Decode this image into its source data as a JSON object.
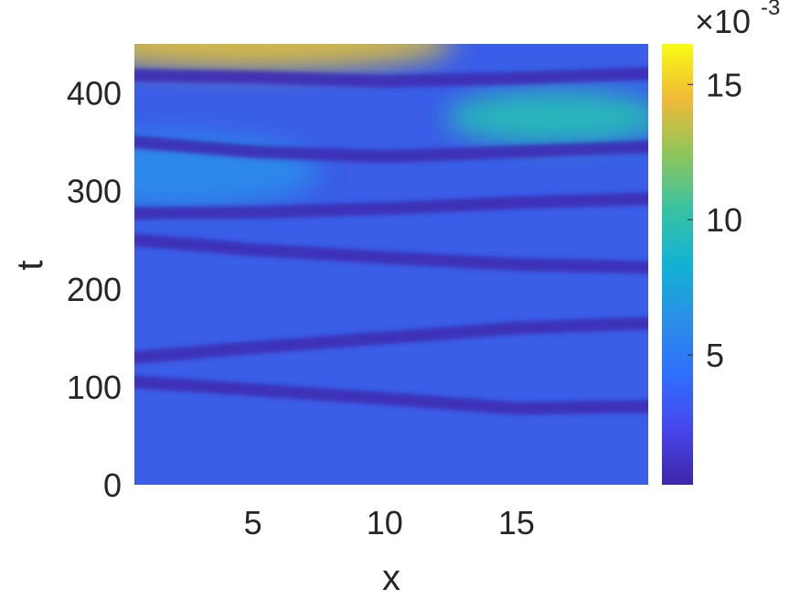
{
  "chart_data": {
    "type": "heatmap",
    "title": "",
    "xlabel": "x",
    "ylabel": "t",
    "xlim": [
      0.5,
      20
    ],
    "ylim": [
      0,
      450
    ],
    "x_ticks": [
      5,
      10,
      15
    ],
    "y_ticks": [
      0,
      100,
      200,
      300,
      400
    ],
    "colorbar": {
      "range": [
        0.2,
        16.5
      ],
      "ticks": [
        5,
        10,
        15
      ],
      "exponent_label": "×10",
      "exponent_power": "-3",
      "colormap": "parula"
    },
    "dark_valley_curves": [
      {
        "x": [
          0.5,
          5,
          10,
          15,
          20
        ],
        "t": [
          105,
          97,
          88,
          78,
          80
        ]
      },
      {
        "x": [
          0.5,
          5,
          10,
          15,
          20
        ],
        "t": [
          130,
          140,
          150,
          160,
          165
        ]
      },
      {
        "x": [
          0.5,
          5,
          10,
          15,
          20
        ],
        "t": [
          250,
          240,
          232,
          225,
          222
        ]
      },
      {
        "x": [
          0.5,
          5,
          10,
          15,
          20
        ],
        "t": [
          277,
          278,
          282,
          288,
          292
        ]
      },
      {
        "x": [
          0.5,
          5,
          10,
          15,
          20
        ],
        "t": [
          350,
          340,
          335,
          340,
          345
        ]
      },
      {
        "x": [
          0.5,
          5,
          10,
          15,
          20
        ],
        "t": [
          418,
          416,
          412,
          415,
          420
        ]
      }
    ],
    "bright_regions": [
      {
        "x": 5,
        "t": 450,
        "value": 14
      },
      {
        "x": 16.5,
        "t": 375,
        "value": 9.5
      },
      {
        "x": 2,
        "t": 320,
        "value": 6
      }
    ]
  }
}
